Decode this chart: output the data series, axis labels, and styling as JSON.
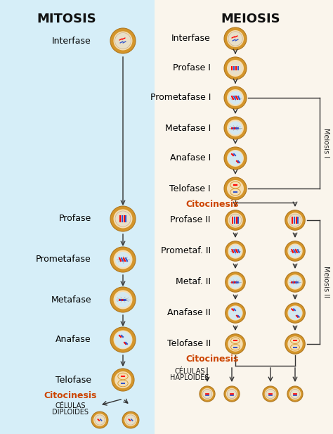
{
  "bg_left": "#d6eef8",
  "bg_right": "#faf5ec",
  "title_left": "MITOSIS",
  "title_right": "MEIOSIS",
  "title_fontsize": 13,
  "label_fontsize": 9,
  "cell_outer_color": "#d4952a",
  "cell_inner_color": "#f5deb3",
  "cell_nucleus_color": "#e8d5b0",
  "arrow_color": "#333333",
  "citocinesis_color": "#cc4400",
  "bracket_color": "#333333",
  "mitosis_stages": [
    "Interfase",
    "Profase",
    "Prometafase",
    "Metafase",
    "Anafase",
    "Telofase",
    "Citocinesis"
  ],
  "meiosis1_stages": [
    "Interfase",
    "Profase I",
    "Prometafase I",
    "Metafase I",
    "Anafase I",
    "Telofase I",
    "Citocinesis"
  ],
  "meiosis2_stages": [
    "Profase II",
    "Prometaf. II",
    "Metaf. II",
    "Anafase II",
    "Telofase II",
    "Citocinesis"
  ],
  "meiosis1_label": "Meiosis I",
  "meiosis2_label": "Meiosis II"
}
